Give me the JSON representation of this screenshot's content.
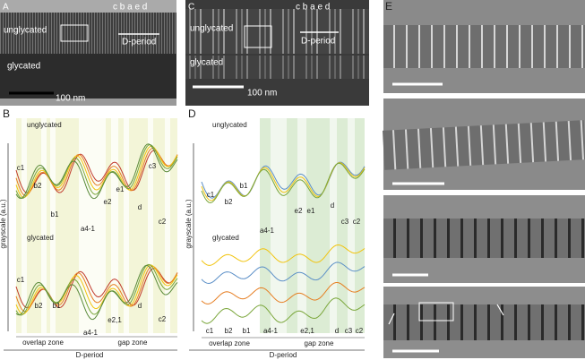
{
  "panel_a": {
    "label": "A",
    "top": "unglycated",
    "bottom": "glycated",
    "scale_bar": "100 nm",
    "bands": "c b a e d",
    "period": "D-period"
  },
  "panel_b": {
    "label": "B",
    "y_axis": "grayscale (a.u.)",
    "upper_title": "unglycated",
    "upper_bands": [
      "c1",
      "b2",
      "b1",
      "a4-1",
      "e2",
      "e1",
      "d",
      "c3",
      "c2"
    ],
    "lower_title": "glycated",
    "lower_bands": [
      "c1",
      "b2",
      "b1",
      "a4-1",
      "e2,1",
      "d",
      "c2"
    ],
    "zones": [
      "overlap zone",
      "gap zone"
    ],
    "x_axis": "D-period"
  },
  "panel_c": {
    "label": "C",
    "top": "unglycated",
    "bottom": "glycated",
    "scale_bar": "100 nm",
    "bands": "c b a e d",
    "period": "D-period"
  },
  "panel_d": {
    "label": "D",
    "y_axis": "grayscale (a.u.)",
    "upper_title": "unglycated",
    "upper_bands": [
      "c1",
      "b2",
      "b1",
      "a4-1",
      "e2",
      "e1",
      "d",
      "c3",
      "c2"
    ],
    "lower_title": "glycated",
    "lower_bands": [
      "c1",
      "b2",
      "b1",
      "a4-1",
      "e2,1",
      "d",
      "c3",
      "c2"
    ],
    "zones": [
      "overlap zone",
      "gap zone"
    ],
    "x_axis": "D-period"
  },
  "panel_e": {
    "label": "E"
  }
}
